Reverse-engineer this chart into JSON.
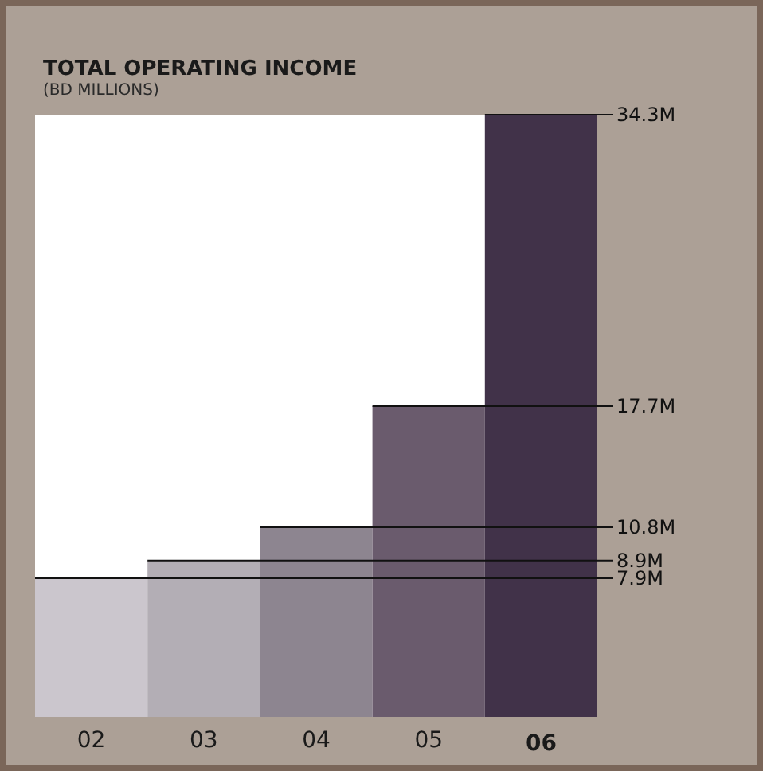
{
  "chart_data": {
    "type": "bar",
    "title": "TOTAL OPERATING INCOME",
    "subtitle": "(BD MILLIONS)",
    "categories": [
      "02",
      "03",
      "04",
      "05",
      "06"
    ],
    "values": [
      7.9,
      8.9,
      10.8,
      17.7,
      34.3
    ],
    "value_labels": [
      "7.9M",
      "8.9M",
      "10.8M",
      "17.7M",
      "34.3M"
    ],
    "colors": [
      "#cbc6cd",
      "#b3aeb5",
      "#8d8590",
      "#6a5b6d",
      "#413249"
    ]
  }
}
